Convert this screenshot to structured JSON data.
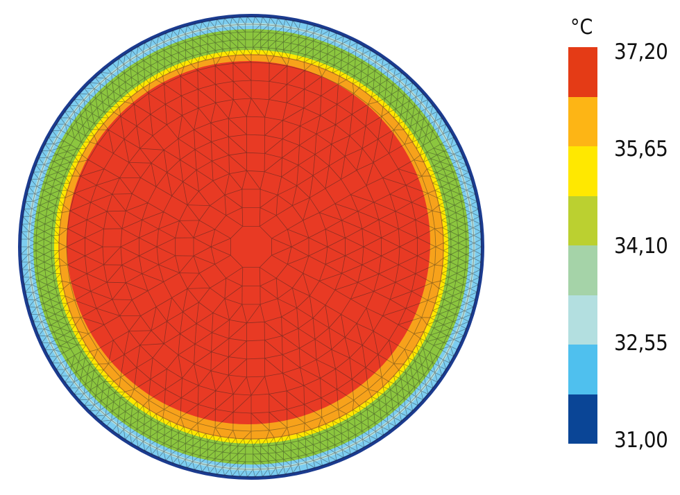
{
  "legend": {
    "unit": "°C",
    "ticks": [
      "37,20",
      "35,65",
      "34,10",
      "32,55",
      "31,00"
    ],
    "bands": [
      "#e43b16",
      "#fdb515",
      "#ffe800",
      "#bbd030",
      "#a5d3a8",
      "#b3dfe0",
      "#4fc0ee",
      "#0a4596"
    ]
  },
  "field": {
    "colors": {
      "outer_edge": "#1b3b8f",
      "light_blue": "#7dcdf0",
      "pale": "#b3dfe0",
      "green": "#8cc63f",
      "yellow": "#ffe800",
      "orange": "#f7a21b",
      "core": "#e83a24"
    }
  }
}
